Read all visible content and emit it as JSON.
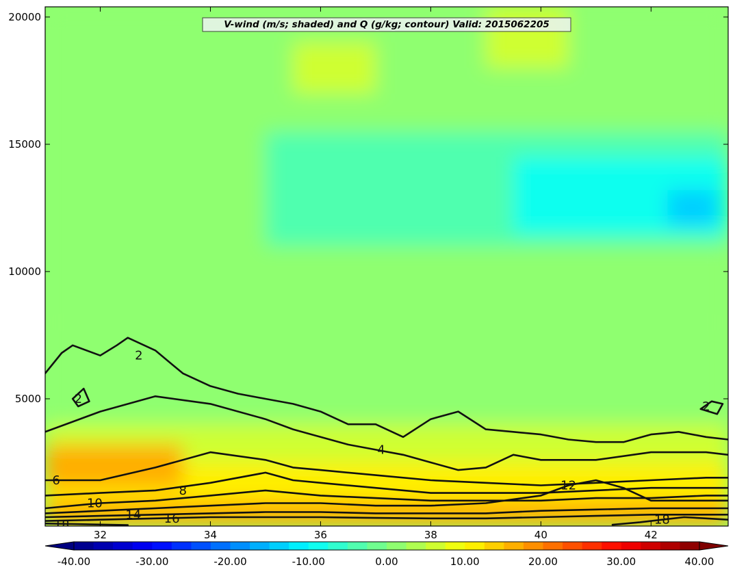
{
  "chart_data": {
    "type": "heatmap",
    "title": "V-wind (m/s; shaded) and Q (g/kg; contour) Valid: 2015062205",
    "xlabel": "",
    "ylabel": "",
    "xlim": [
      31.0,
      43.4
    ],
    "ylim": [
      0,
      20400
    ],
    "x_ticks": [
      32,
      34,
      36,
      38,
      40,
      42
    ],
    "y_ticks": [
      5000,
      10000,
      15000,
      20000
    ],
    "grid": false,
    "shaded_variable": "V-wind (m/s)",
    "contour_variable": "Q (g/kg)",
    "colorbar": {
      "orientation": "horizontal",
      "range": [
        -40,
        40
      ],
      "step": 2.5,
      "tick_values": [
        -40,
        -30,
        -20,
        -10,
        0,
        10,
        20,
        30,
        40
      ],
      "tick_labels": [
        "-40.00",
        "-30.00",
        "-20.00",
        "-10.00",
        "0.00",
        "10.00",
        "20.00",
        "30.00",
        "40.00"
      ],
      "extend": "both",
      "colormap": "jet"
    },
    "shaded_field_regions": [
      {
        "x": [
          31.0,
          43.4
        ],
        "y": [
          8000,
          20400
        ],
        "v": 2
      },
      {
        "x": [
          31.0,
          43.4
        ],
        "y": [
          4000,
          8000
        ],
        "v": 0
      },
      {
        "x": [
          31.0,
          43.4
        ],
        "y": [
          2500,
          4000
        ],
        "v": 5
      },
      {
        "x": [
          31.0,
          43.4
        ],
        "y": [
          1000,
          2500
        ],
        "v": 10
      },
      {
        "x": [
          31.0,
          43.4
        ],
        "y": [
          0,
          1000
        ],
        "v": 17
      },
      {
        "x": [
          35.0,
          43.4
        ],
        "y": [
          11000,
          15500
        ],
        "v": -5
      },
      {
        "x": [
          39.5,
          43.4
        ],
        "y": [
          11500,
          14500
        ],
        "v": -10
      },
      {
        "x": [
          42.3,
          43.2
        ],
        "y": [
          11800,
          13200
        ],
        "v": -15
      },
      {
        "x": [
          31.0,
          33.5
        ],
        "y": [
          1500,
          3200
        ],
        "v": 15
      },
      {
        "x": [
          35.0,
          37.5
        ],
        "y": [
          12000,
          14500
        ],
        "v": -3
      },
      {
        "x": [
          35.5,
          37.0
        ],
        "y": [
          17000,
          19000
        ],
        "v": 5
      },
      {
        "x": [
          39.0,
          40.5
        ],
        "y": [
          18000,
          20400
        ],
        "v": 6
      }
    ],
    "contours": [
      {
        "level": 2,
        "label": "2",
        "label_at": [
          32.7,
          6700
        ],
        "x": [
          31.0,
          31.3,
          31.5,
          32.0,
          32.3,
          32.5,
          33.0,
          33.5,
          34.0,
          34.5,
          35.0,
          35.5,
          36.0,
          36.5,
          37.0,
          37.5,
          38.0,
          38.5,
          39.0,
          39.5,
          40.0,
          40.5,
          41.0,
          41.5,
          42.0,
          42.5,
          43.0,
          43.4
        ],
        "y": [
          6000,
          6800,
          7100,
          6700,
          7100,
          7400,
          6900,
          6000,
          5500,
          5200,
          5000,
          4800,
          4500,
          4000,
          4000,
          3500,
          4200,
          4500,
          3800,
          3700,
          3600,
          3400,
          3300,
          3300,
          3600,
          3700,
          3500,
          3400
        ]
      },
      {
        "level": 2,
        "label": "2",
        "label_at": [
          31.6,
          5000
        ],
        "x": [
          31.5,
          31.7,
          31.8,
          31.6,
          31.5
        ],
        "y": [
          5000,
          5400,
          4900,
          4700,
          5000
        ]
      },
      {
        "level": 2,
        "label": "2",
        "label_at": [
          43.0,
          4700
        ],
        "x": [
          42.9,
          43.1,
          43.3,
          43.2,
          42.9
        ],
        "y": [
          4600,
          4900,
          4800,
          4400,
          4600
        ]
      },
      {
        "level": 4,
        "label": "4",
        "label_at": [
          37.1,
          3000
        ],
        "x": [
          31.0,
          31.5,
          32.0,
          33.0,
          34.0,
          35.0,
          35.5,
          36.0,
          36.5,
          37.0,
          37.5,
          38.0,
          38.5,
          39.0,
          39.5,
          40.0,
          41.0,
          42.0,
          43.0,
          43.4
        ],
        "y": [
          3700,
          4100,
          4500,
          5100,
          4800,
          4200,
          3800,
          3500,
          3200,
          3000,
          2800,
          2500,
          2200,
          2300,
          2800,
          2600,
          2600,
          2900,
          2900,
          2800
        ]
      },
      {
        "level": 6,
        "label": "6",
        "label_at": [
          31.2,
          1800
        ],
        "x": [
          31.0,
          31.5,
          32.0,
          33.0,
          34.0,
          35.0,
          35.5,
          36.0,
          37.0,
          38.0,
          39.0,
          40.0,
          41.0,
          42.0,
          43.0,
          43.4
        ],
        "y": [
          1800,
          1800,
          1800,
          2300,
          2900,
          2600,
          2300,
          2200,
          2000,
          1800,
          1700,
          1600,
          1700,
          1800,
          1900,
          1900
        ]
      },
      {
        "level": 8,
        "label": "8",
        "label_at": [
          33.5,
          1400
        ],
        "x": [
          31.0,
          32.0,
          33.0,
          34.0,
          35.0,
          35.5,
          36.0,
          37.0,
          38.0,
          39.0,
          40.0,
          41.0,
          42.0,
          43.0,
          43.4
        ],
        "y": [
          1200,
          1300,
          1400,
          1700,
          2100,
          1800,
          1700,
          1500,
          1300,
          1300,
          1300,
          1400,
          1500,
          1500,
          1500
        ]
      },
      {
        "level": 10,
        "label": "10",
        "label_at": [
          31.9,
          900
        ],
        "x": [
          31.0,
          32.0,
          33.0,
          34.0,
          35.0,
          36.0,
          37.0,
          38.0,
          39.0,
          40.0,
          41.0,
          42.0,
          43.0,
          43.4
        ],
        "y": [
          700,
          900,
          1000,
          1200,
          1400,
          1200,
          1100,
          1000,
          1000,
          1000,
          1100,
          1100,
          1200,
          1200
        ]
      },
      {
        "level": 12,
        "label": "12",
        "label_at": [
          40.5,
          1600
        ],
        "x": [
          31.0,
          32.0,
          33.0,
          34.0,
          35.0,
          36.0,
          37.0,
          38.0,
          39.0,
          40.0,
          40.5,
          41.0,
          41.5,
          42.0,
          43.0,
          43.4
        ],
        "y": [
          500,
          600,
          700,
          800,
          900,
          900,
          800,
          800,
          900,
          1200,
          1600,
          1800,
          1500,
          1000,
          1000,
          1000
        ]
      },
      {
        "level": 14,
        "label": "14",
        "label_at": [
          32.6,
          450
        ],
        "x": [
          31.0,
          32.0,
          33.0,
          34.0,
          35.0,
          36.0,
          37.0,
          38.0,
          39.0,
          40.0,
          41.0,
          42.0,
          43.0,
          43.4
        ],
        "y": [
          350,
          400,
          450,
          500,
          550,
          550,
          500,
          500,
          500,
          600,
          650,
          700,
          700,
          700
        ]
      },
      {
        "level": 16,
        "label": "16",
        "label_at": [
          33.3,
          300
        ],
        "x": [
          31.0,
          32.0,
          33.0,
          34.0,
          35.0,
          36.0,
          37.0,
          38.0,
          39.0,
          40.0,
          41.0,
          42.0,
          43.0,
          43.4
        ],
        "y": [
          200,
          250,
          300,
          350,
          350,
          350,
          320,
          300,
          300,
          350,
          400,
          450,
          450,
          450
        ]
      },
      {
        "level": 18,
        "label": "18",
        "label_at": [
          31.3,
          60
        ],
        "x": [
          31.0,
          31.5,
          32.0,
          32.5
        ],
        "y": [
          100,
          80,
          60,
          40
        ]
      },
      {
        "level": 18,
        "label": "18",
        "label_at": [
          42.2,
          250
        ],
        "x": [
          41.3,
          41.8,
          42.2,
          42.6,
          43.0,
          43.4
        ],
        "y": [
          50,
          150,
          250,
          350,
          300,
          250
        ]
      }
    ]
  }
}
